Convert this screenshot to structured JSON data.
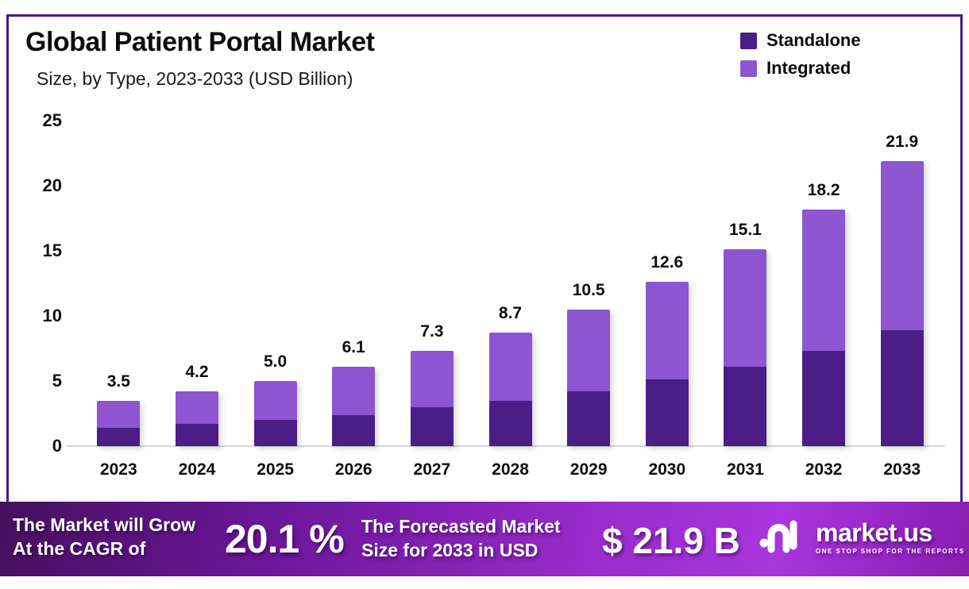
{
  "header": {
    "title": "Global Patient Portal Market",
    "subtitle": "Size, by Type, 2023-2033 (USD Billion)"
  },
  "legend": [
    {
      "label": "Standalone",
      "color": "#4A1D87"
    },
    {
      "label": "Integrated",
      "color": "#8D55CF"
    }
  ],
  "chart_data": {
    "type": "bar",
    "stacked": true,
    "title": "Global Patient Portal Market",
    "subtitle": "Size, by Type, 2023-2033 (USD Billion)",
    "unit": "USD Billion",
    "categories": [
      "2023",
      "2024",
      "2025",
      "2026",
      "2027",
      "2028",
      "2029",
      "2030",
      "2031",
      "2032",
      "2033"
    ],
    "series": [
      {
        "name": "Standalone",
        "color": "#4A1D87",
        "values": [
          1.4,
          1.7,
          2.0,
          2.4,
          3.0,
          3.5,
          4.2,
          5.1,
          6.1,
          7.3,
          8.9
        ]
      },
      {
        "name": "Integrated",
        "color": "#8D55CF",
        "values": [
          2.1,
          2.5,
          3.0,
          3.7,
          4.3,
          5.2,
          6.3,
          7.5,
          9.0,
          10.9,
          13.0
        ]
      }
    ],
    "totals": [
      3.5,
      4.2,
      5.0,
      6.1,
      7.3,
      8.7,
      10.5,
      12.6,
      15.1,
      18.2,
      21.9
    ],
    "total_labels": [
      "3.5",
      "4.2",
      "5.0",
      "6.1",
      "7.3",
      "8.7",
      "10.5",
      "12.6",
      "15.1",
      "18.2",
      "21.9"
    ],
    "y_ticks": [
      0,
      5,
      10,
      15,
      20,
      25
    ],
    "ylim": [
      0,
      25
    ],
    "grid": false,
    "legend_position": "top-right"
  },
  "banner": {
    "cagr_label_line1": "The Market will Grow",
    "cagr_label_line2": "At the CAGR of",
    "cagr_value": "20.1 %",
    "forecast_label_line1": "The Forecasted Market",
    "forecast_label_line2": "Size for 2033 in USD",
    "forecast_value": "$ 21.9 B",
    "brand": {
      "name": "market.us",
      "tagline": "ONE STOP SHOP FOR THE REPORTS"
    }
  },
  "colors": {
    "standalone": "#4A1D87",
    "integrated": "#8D55CF",
    "frame_border": "#4C1A86",
    "banner_gradient_start": "#45105E",
    "banner_gradient_mid": "#9A2CCC",
    "banner_gradient_end": "#8A1CB2",
    "axis_line": "#D6D6D6",
    "text": "#0D0D0D"
  }
}
